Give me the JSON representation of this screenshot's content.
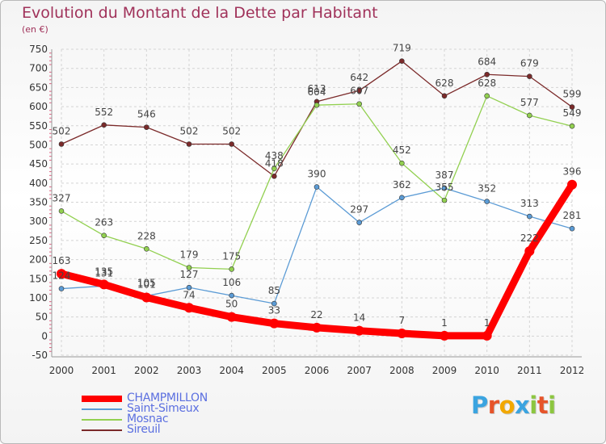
{
  "chart_data": {
    "type": "line",
    "title": "Evolution du Montant de la Dette par Habitant",
    "subtitle": "(en €)",
    "xlabel": "",
    "ylabel": "",
    "x": [
      "2000",
      "2001",
      "2002",
      "2003",
      "2004",
      "2005",
      "2006",
      "2007",
      "2008",
      "2009",
      "2010",
      "2011",
      "2012"
    ],
    "ylim": [
      -50,
      750
    ],
    "yticks": [
      -50,
      0,
      50,
      100,
      150,
      200,
      250,
      300,
      350,
      400,
      450,
      500,
      550,
      600,
      650,
      700,
      750
    ],
    "grid": true,
    "legend_position": "bottom-left",
    "series": [
      {
        "name": "CHAMPMILLON",
        "color": "#ff0000",
        "values": [
          163,
          135,
          101,
          74,
          50,
          33,
          22,
          14,
          7,
          1,
          1,
          222,
          396
        ],
        "labels": [
          "163",
          "135",
          "101",
          "74",
          "50",
          "33",
          "22",
          "14",
          "7",
          "1",
          "1",
          "222",
          "396"
        ]
      },
      {
        "name": "Saint-Simeux",
        "color": "#5b9bd5",
        "values": [
          124,
          131,
          105,
          127,
          106,
          85,
          390,
          297,
          362,
          387,
          352,
          313,
          281
        ],
        "labels": [
          "124",
          "131",
          "105",
          "127",
          "106",
          "85",
          "390",
          "297",
          "362",
          "387",
          "352",
          "313",
          "281"
        ]
      },
      {
        "name": "Mosnac",
        "color": "#92d050",
        "values": [
          327,
          263,
          228,
          179,
          175,
          438,
          604,
          607,
          452,
          355,
          628,
          577,
          549
        ],
        "labels": [
          "327",
          "263",
          "228",
          "179",
          "175",
          "438",
          "604",
          "607",
          "452",
          "355",
          "628",
          "577",
          "549"
        ]
      },
      {
        "name": "Sireuil",
        "color": "#7b2a2a",
        "values": [
          502,
          552,
          546,
          502,
          502,
          418,
          613,
          642,
          719,
          628,
          684,
          679,
          599
        ],
        "labels": [
          "502",
          "552",
          "546",
          "502",
          "502",
          "418",
          "613",
          "642",
          "719",
          "628",
          "684",
          "679",
          "599"
        ]
      }
    ]
  },
  "logo": {
    "text": "Proxiti"
  }
}
